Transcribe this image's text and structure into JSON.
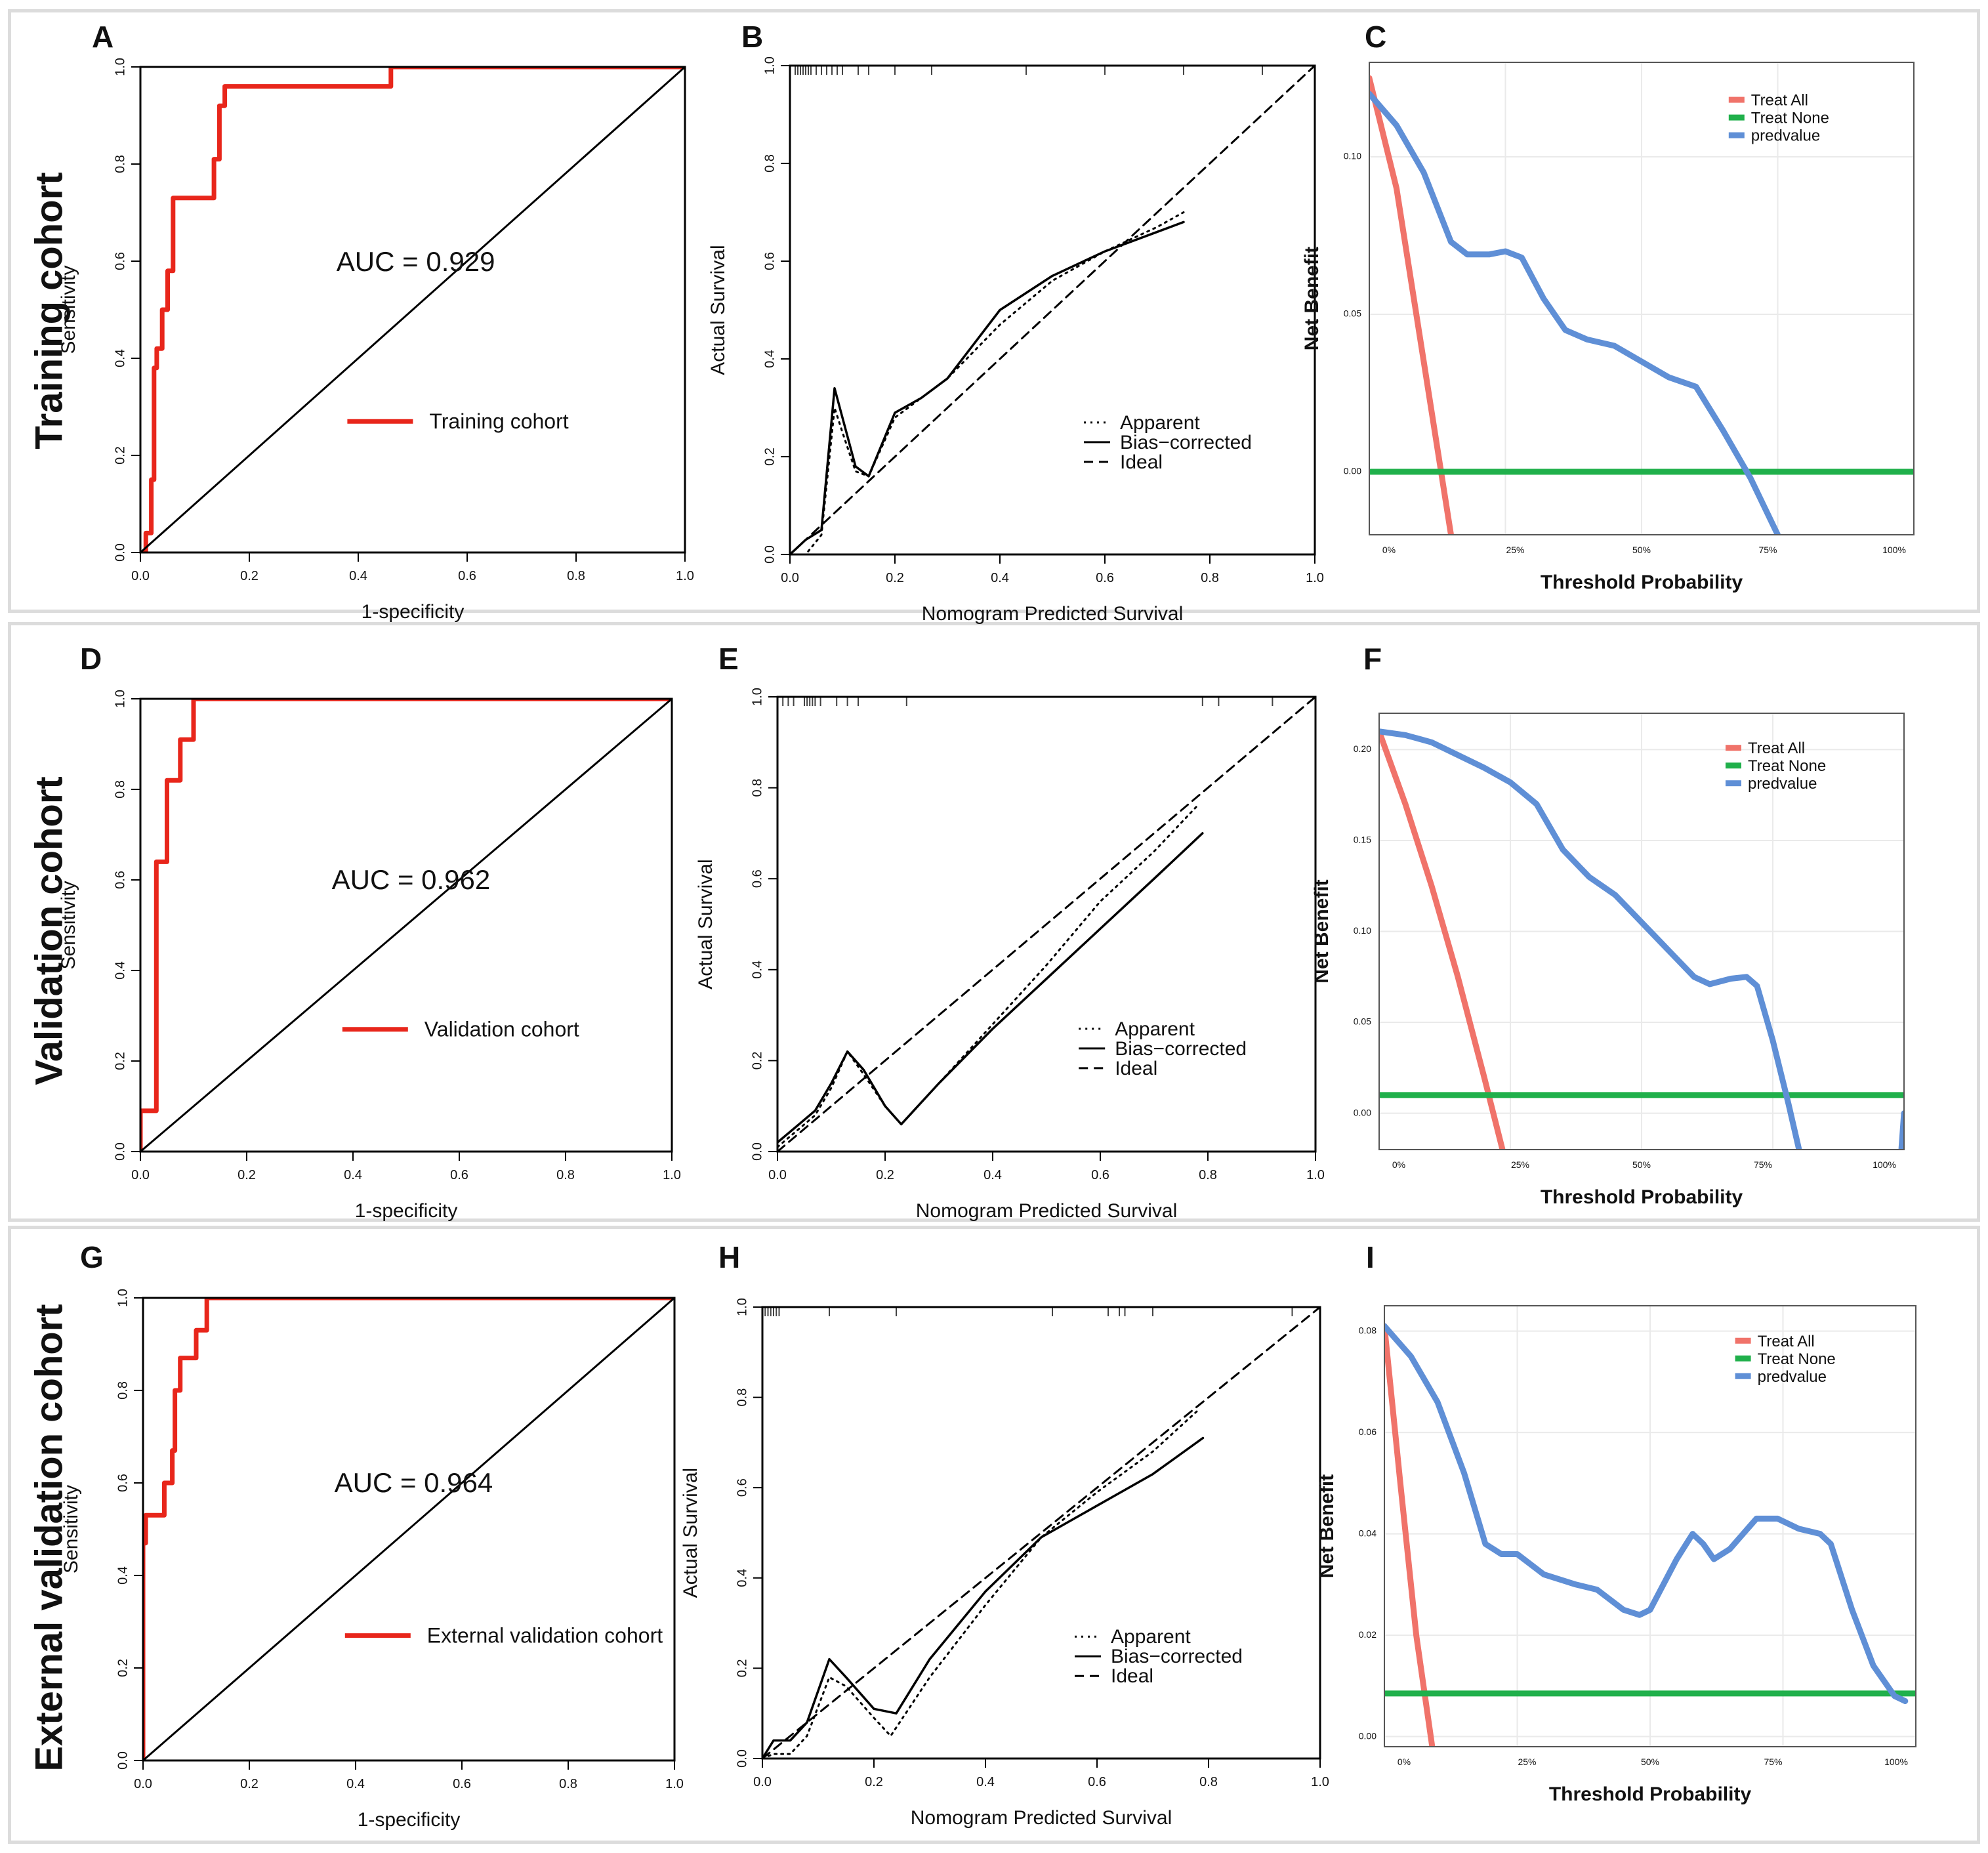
{
  "rows": [
    {
      "label": "Training cohort"
    },
    {
      "label": "Validation cohort"
    },
    {
      "label": "External validation cohort"
    }
  ],
  "colors": {
    "roc_line": "#e8261b",
    "treat_all": "#f0736a",
    "treat_none": "#20b04b",
    "predvalue": "#5f8fd6",
    "frame": "#000000",
    "grid": "#eaeaea"
  },
  "chart_data": [
    {
      "panel": "A",
      "type": "line",
      "kind": "roc",
      "xlabel": "1-specificity",
      "ylabel": "Sensitivity",
      "xlim": [
        0,
        1
      ],
      "ylim": [
        0,
        1
      ],
      "x_ticks": [
        "0.0",
        "0.2",
        "0.4",
        "0.6",
        "0.8",
        "1.0"
      ],
      "y_ticks": [
        "0.0",
        "0.2",
        "0.4",
        "0.6",
        "0.8",
        "1.0"
      ],
      "annotation": "AUC = 0.929",
      "legend": [
        "Training cohort"
      ],
      "series": [
        {
          "name": "Training cohort",
          "x": [
            0,
            0.01,
            0.01,
            0.02,
            0.02,
            0.025,
            0.025,
            0.03,
            0.03,
            0.04,
            0.04,
            0.05,
            0.05,
            0.06,
            0.06,
            0.135,
            0.135,
            0.145,
            0.145,
            0.155,
            0.155,
            0.46,
            0.46,
            1.0
          ],
          "y": [
            0,
            0,
            0.04,
            0.04,
            0.15,
            0.15,
            0.38,
            0.38,
            0.42,
            0.42,
            0.5,
            0.5,
            0.58,
            0.58,
            0.73,
            0.73,
            0.81,
            0.81,
            0.92,
            0.92,
            0.96,
            0.96,
            1.0,
            1.0
          ]
        },
        {
          "name": "reference",
          "x": [
            0,
            1
          ],
          "y": [
            0,
            1
          ]
        }
      ]
    },
    {
      "panel": "B",
      "type": "line",
      "kind": "calibration",
      "xlabel": "Nomogram Predicted Survival",
      "ylabel": "Actual Survival",
      "xlim": [
        0,
        1
      ],
      "ylim": [
        0,
        1
      ],
      "x_ticks": [
        "0.0",
        "0.2",
        "0.4",
        "0.6",
        "0.8",
        "1.0"
      ],
      "y_ticks": [
        "0.0",
        "0.2",
        "0.4",
        "0.6",
        "0.8",
        "1.0"
      ],
      "legend": [
        "Apparent",
        "Bias−corrected",
        "Ideal"
      ],
      "rug": [
        0.01,
        0.015,
        0.02,
        0.025,
        0.03,
        0.035,
        0.04,
        0.05,
        0.06,
        0.07,
        0.08,
        0.09,
        0.1,
        0.13,
        0.15,
        0.2,
        0.27,
        0.45,
        0.6,
        0.75,
        0.9
      ],
      "series": [
        {
          "name": "Apparent",
          "x": [
            0,
            0.03,
            0.06,
            0.085,
            0.1,
            0.125,
            0.15,
            0.2,
            0.25,
            0.3,
            0.4,
            0.5,
            0.6,
            0.7,
            0.75
          ],
          "y": [
            0,
            0.0,
            0.04,
            0.3,
            0.25,
            0.17,
            0.16,
            0.28,
            0.32,
            0.36,
            0.47,
            0.56,
            0.62,
            0.67,
            0.7
          ]
        },
        {
          "name": "Bias−corrected",
          "x": [
            0,
            0.03,
            0.06,
            0.085,
            0.1,
            0.125,
            0.15,
            0.2,
            0.25,
            0.3,
            0.4,
            0.5,
            0.6,
            0.7,
            0.75
          ],
          "y": [
            0,
            0.03,
            0.05,
            0.34,
            0.28,
            0.18,
            0.16,
            0.29,
            0.32,
            0.36,
            0.5,
            0.57,
            0.62,
            0.66,
            0.68
          ]
        },
        {
          "name": "Ideal",
          "x": [
            0,
            1
          ],
          "y": [
            0,
            1
          ]
        }
      ]
    },
    {
      "panel": "C",
      "type": "line",
      "kind": "dca",
      "xlabel": "Threshold Probability",
      "ylabel": "Net Benefit",
      "xlim": [
        0,
        1
      ],
      "ylim": [
        -0.02,
        0.13
      ],
      "x_ticks": [
        "0%",
        "25%",
        "50%",
        "75%",
        "100%"
      ],
      "y_ticks": [
        "0.00",
        "0.05",
        "0.10"
      ],
      "y_tick_values": [
        0,
        0.05,
        0.1
      ],
      "legend": [
        "Treat All",
        "Treat None",
        "predvalue"
      ],
      "series": [
        {
          "name": "Treat All",
          "x": [
            0,
            0.05,
            0.1,
            0.15
          ],
          "y": [
            0.125,
            0.09,
            0.035,
            -0.02
          ]
        },
        {
          "name": "Treat None",
          "x": [
            0,
            1
          ],
          "y": [
            0,
            0
          ]
        },
        {
          "name": "predvalue",
          "x": [
            0,
            0.05,
            0.1,
            0.15,
            0.18,
            0.22,
            0.25,
            0.28,
            0.32,
            0.36,
            0.4,
            0.45,
            0.5,
            0.55,
            0.6,
            0.65,
            0.7,
            0.75
          ],
          "y": [
            0.12,
            0.11,
            0.095,
            0.073,
            0.069,
            0.069,
            0.07,
            0.068,
            0.055,
            0.045,
            0.042,
            0.04,
            0.035,
            0.03,
            0.027,
            0.013,
            -0.002,
            -0.02
          ]
        }
      ]
    },
    {
      "panel": "D",
      "type": "line",
      "kind": "roc",
      "xlabel": "1-specificity",
      "ylabel": "Sensitivity",
      "xlim": [
        0,
        1
      ],
      "ylim": [
        0,
        1
      ],
      "x_ticks": [
        "0.0",
        "0.2",
        "0.4",
        "0.6",
        "0.8",
        "1.0"
      ],
      "y_ticks": [
        "0.0",
        "0.2",
        "0.4",
        "0.6",
        "0.8",
        "1.0"
      ],
      "annotation": "AUC = 0.962",
      "legend": [
        "Validation cohort"
      ],
      "series": [
        {
          "name": "Validation cohort",
          "x": [
            0,
            0,
            0.03,
            0.03,
            0.05,
            0.05,
            0.075,
            0.075,
            0.1,
            0.1,
            1.0
          ],
          "y": [
            0,
            0.09,
            0.09,
            0.64,
            0.64,
            0.82,
            0.82,
            0.91,
            0.91,
            1.0,
            1.0
          ]
        },
        {
          "name": "reference",
          "x": [
            0,
            1
          ],
          "y": [
            0,
            1
          ]
        }
      ]
    },
    {
      "panel": "E",
      "type": "line",
      "kind": "calibration",
      "xlabel": "Nomogram Predicted Survival",
      "ylabel": "Actual Survival",
      "xlim": [
        0,
        1
      ],
      "ylim": [
        0,
        1
      ],
      "x_ticks": [
        "0.0",
        "0.2",
        "0.4",
        "0.6",
        "0.8",
        "1.0"
      ],
      "y_ticks": [
        "0.0",
        "0.2",
        "0.4",
        "0.6",
        "0.8",
        "1.0"
      ],
      "legend": [
        "Apparent",
        "Bias−corrected",
        "Ideal"
      ],
      "rug": [
        0.01,
        0.02,
        0.03,
        0.05,
        0.055,
        0.06,
        0.065,
        0.07,
        0.08,
        0.11,
        0.13,
        0.15,
        0.24,
        0.79,
        0.82,
        0.92
      ],
      "series": [
        {
          "name": "Apparent",
          "x": [
            0,
            0.04,
            0.07,
            0.1,
            0.13,
            0.16,
            0.2,
            0.23,
            0.3,
            0.4,
            0.5,
            0.6,
            0.7,
            0.78
          ],
          "y": [
            0.01,
            0.05,
            0.08,
            0.14,
            0.22,
            0.17,
            0.1,
            0.06,
            0.15,
            0.28,
            0.41,
            0.55,
            0.66,
            0.76
          ]
        },
        {
          "name": "Bias−corrected",
          "x": [
            0,
            0.04,
            0.07,
            0.1,
            0.13,
            0.16,
            0.2,
            0.23,
            0.3,
            0.4,
            0.5,
            0.6,
            0.7,
            0.79
          ],
          "y": [
            0.02,
            0.06,
            0.09,
            0.15,
            0.22,
            0.18,
            0.1,
            0.06,
            0.15,
            0.27,
            0.38,
            0.49,
            0.6,
            0.7
          ]
        },
        {
          "name": "Ideal",
          "x": [
            0,
            1
          ],
          "y": [
            0,
            1
          ]
        }
      ]
    },
    {
      "panel": "F",
      "type": "line",
      "kind": "dca",
      "xlabel": "Threshold Probability",
      "ylabel": "Net Benefit",
      "xlim": [
        0,
        1
      ],
      "ylim": [
        -0.02,
        0.22
      ],
      "x_ticks": [
        "0%",
        "25%",
        "50%",
        "75%",
        "100%"
      ],
      "y_ticks": [
        "0.00",
        "0.05",
        "0.10",
        "0.15",
        "0.20"
      ],
      "y_tick_values": [
        0,
        0.05,
        0.1,
        0.15,
        0.2
      ],
      "legend": [
        "Treat All",
        "Treat None",
        "predvalue"
      ],
      "series": [
        {
          "name": "Treat All",
          "x": [
            0,
            0.05,
            0.1,
            0.15,
            0.2,
            0.235
          ],
          "y": [
            0.21,
            0.17,
            0.125,
            0.075,
            0.02,
            -0.02
          ]
        },
        {
          "name": "Treat None",
          "x": [
            0,
            1
          ],
          "y": [
            0.01,
            0.01
          ]
        },
        {
          "name": "predvalue",
          "x": [
            0,
            0.05,
            0.1,
            0.15,
            0.2,
            0.25,
            0.3,
            0.35,
            0.4,
            0.45,
            0.5,
            0.55,
            0.6,
            0.63,
            0.67,
            0.7,
            0.72,
            0.75,
            0.78,
            0.8
          ],
          "y": [
            0.21,
            0.208,
            0.204,
            0.197,
            0.19,
            0.182,
            0.17,
            0.145,
            0.13,
            0.12,
            0.105,
            0.09,
            0.075,
            0.071,
            0.074,
            0.075,
            0.07,
            0.04,
            0.005,
            -0.02
          ]
        },
        {
          "name": "predvalue-tail",
          "x": [
            0.995,
            1.0
          ],
          "y": [
            -0.02,
            0.0
          ]
        }
      ]
    },
    {
      "panel": "G",
      "type": "line",
      "kind": "roc",
      "xlabel": "1-specificity",
      "ylabel": "Sensitivity",
      "xlim": [
        0,
        1
      ],
      "ylim": [
        0,
        1
      ],
      "x_ticks": [
        "0.0",
        "0.2",
        "0.4",
        "0.6",
        "0.8",
        "1.0"
      ],
      "y_ticks": [
        "0.0",
        "0.2",
        "0.4",
        "0.6",
        "0.8",
        "1.0"
      ],
      "annotation": "AUC = 0.964",
      "legend": [
        "External validation cohort"
      ],
      "series": [
        {
          "name": "External validation cohort",
          "x": [
            0,
            0,
            0.005,
            0.005,
            0.01,
            0.01,
            0.04,
            0.04,
            0.055,
            0.055,
            0.06,
            0.06,
            0.07,
            0.07,
            0.1,
            0.1,
            0.11,
            0.11,
            0.12,
            0.12,
            1.0
          ],
          "y": [
            0,
            0.47,
            0.47,
            0.53,
            0.53,
            0.53,
            0.53,
            0.6,
            0.6,
            0.67,
            0.67,
            0.8,
            0.8,
            0.87,
            0.87,
            0.93,
            0.93,
            0.93,
            0.93,
            1.0,
            1.0
          ]
        },
        {
          "name": "reference",
          "x": [
            0,
            1
          ],
          "y": [
            0,
            1
          ]
        }
      ]
    },
    {
      "panel": "H",
      "type": "line",
      "kind": "calibration",
      "xlabel": "Nomogram Predicted Survival",
      "ylabel": "Actual Survival",
      "xlim": [
        0,
        1
      ],
      "ylim": [
        0,
        1
      ],
      "x_ticks": [
        "0.0",
        "0.2",
        "0.4",
        "0.6",
        "0.8",
        "1.0"
      ],
      "y_ticks": [
        "0.0",
        "0.2",
        "0.4",
        "0.6",
        "0.8",
        "1.0"
      ],
      "legend": [
        "Apparent",
        "Bias−corrected",
        "Ideal"
      ],
      "rug": [
        0.005,
        0.01,
        0.015,
        0.02,
        0.025,
        0.03,
        0.12,
        0.24,
        0.52,
        0.62,
        0.64,
        0.65,
        0.7,
        0.95
      ],
      "series": [
        {
          "name": "Apparent",
          "x": [
            0,
            0.02,
            0.05,
            0.08,
            0.12,
            0.15,
            0.2,
            0.23,
            0.3,
            0.4,
            0.5,
            0.6,
            0.7,
            0.78
          ],
          "y": [
            0,
            0.01,
            0.01,
            0.05,
            0.18,
            0.16,
            0.09,
            0.05,
            0.18,
            0.34,
            0.49,
            0.59,
            0.68,
            0.77
          ]
        },
        {
          "name": "Bias−corrected",
          "x": [
            0,
            0.02,
            0.05,
            0.08,
            0.12,
            0.15,
            0.2,
            0.24,
            0.3,
            0.4,
            0.5,
            0.6,
            0.7,
            0.79
          ],
          "y": [
            0,
            0.04,
            0.04,
            0.08,
            0.22,
            0.18,
            0.11,
            0.1,
            0.22,
            0.37,
            0.49,
            0.56,
            0.63,
            0.71
          ]
        },
        {
          "name": "Ideal",
          "x": [
            0,
            1
          ],
          "y": [
            0,
            1
          ]
        }
      ]
    },
    {
      "panel": "I",
      "type": "line",
      "kind": "dca",
      "xlabel": "Threshold Probability",
      "ylabel": "Net Benefit",
      "xlim": [
        0,
        1
      ],
      "ylim": [
        -0.002,
        0.085
      ],
      "x_ticks": [
        "0%",
        "25%",
        "50%",
        "75%",
        "100%"
      ],
      "y_ticks": [
        "0.00",
        "0.02",
        "0.04",
        "0.06",
        "0.08"
      ],
      "y_tick_values": [
        0,
        0.02,
        0.04,
        0.06,
        0.08
      ],
      "legend": [
        "Treat All",
        "Treat None",
        "predvalue"
      ],
      "series": [
        {
          "name": "Treat All",
          "x": [
            0,
            0.03,
            0.06,
            0.09
          ],
          "y": [
            0.081,
            0.05,
            0.02,
            -0.002
          ]
        },
        {
          "name": "Treat None",
          "x": [
            0,
            1
          ],
          "y": [
            0.0085,
            0.0085
          ]
        },
        {
          "name": "predvalue",
          "x": [
            0,
            0.05,
            0.1,
            0.15,
            0.19,
            0.22,
            0.25,
            0.3,
            0.36,
            0.4,
            0.45,
            0.48,
            0.5,
            0.55,
            0.58,
            0.6,
            0.62,
            0.65,
            0.7,
            0.74,
            0.78,
            0.82,
            0.84,
            0.88,
            0.92,
            0.96,
            0.98
          ],
          "y": [
            0.081,
            0.075,
            0.066,
            0.052,
            0.038,
            0.036,
            0.036,
            0.032,
            0.03,
            0.029,
            0.025,
            0.024,
            0.025,
            0.035,
            0.04,
            0.038,
            0.035,
            0.037,
            0.043,
            0.043,
            0.041,
            0.04,
            0.038,
            0.025,
            0.014,
            0.008,
            0.007
          ]
        }
      ]
    }
  ]
}
